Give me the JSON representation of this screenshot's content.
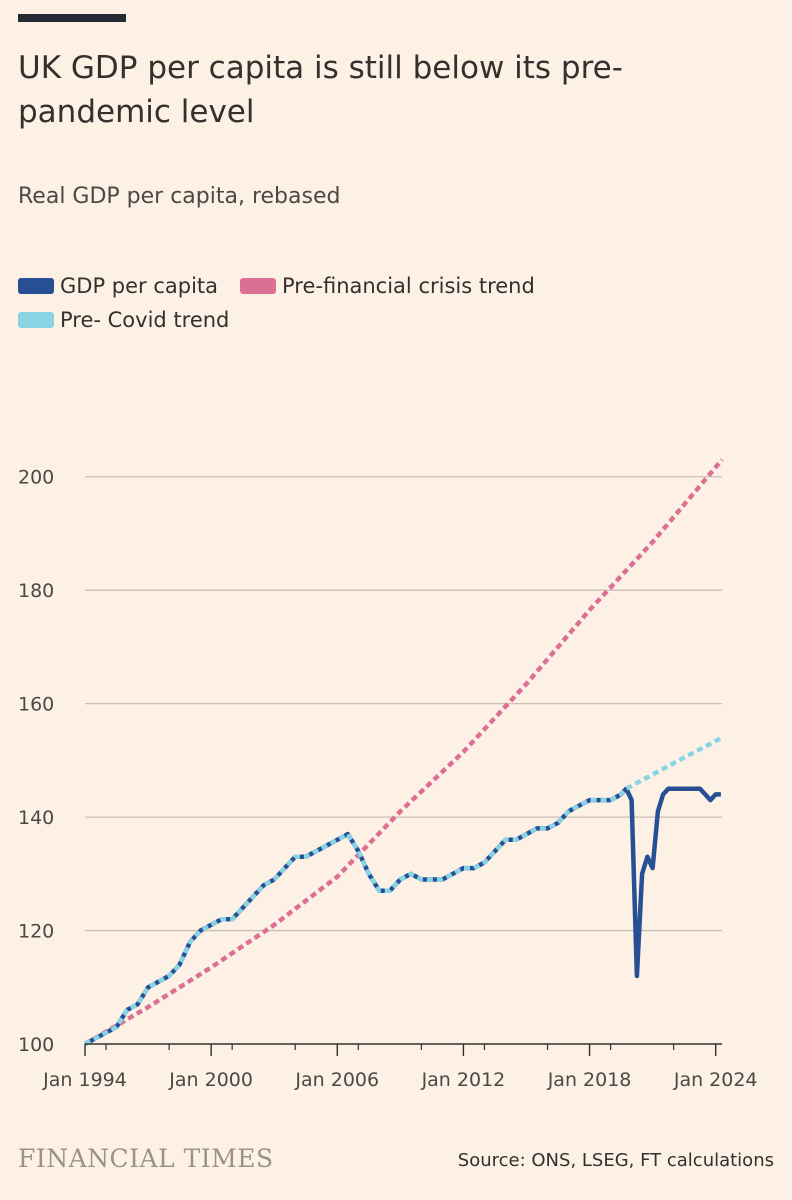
{
  "header": {
    "title": "UK GDP per capita is still below its pre-pandemic level",
    "subtitle": "Real GDP per capita, rebased"
  },
  "footer": {
    "brand": "FINANCIAL TIMES",
    "source": "Source: ONS, LSEG, FT calculations"
  },
  "colors": {
    "background": "#fdf1e6",
    "gdp": "#264f94",
    "pre_financial": "#dc7094",
    "pre_covid": "#89d4e4",
    "grid": "#c9c0b8"
  },
  "chart_data": {
    "type": "line",
    "title": "UK GDP per capita is still below its pre-pandemic level",
    "subtitle": "Real GDP per capita, rebased",
    "xlabel": "",
    "ylabel": "",
    "xlim": [
      1994,
      2024.3
    ],
    "ylim": [
      100,
      210
    ],
    "yticks": [
      100,
      120,
      140,
      160,
      180,
      200
    ],
    "xticks": [
      {
        "value": 1994,
        "label": "Jan 1994"
      },
      {
        "value": 2000,
        "label": "Jan 2000"
      },
      {
        "value": 2006,
        "label": "Jan 2006"
      },
      {
        "value": 2012,
        "label": "Jan 2012"
      },
      {
        "value": 2018,
        "label": "Jan 2018"
      },
      {
        "value": 2024,
        "label": "Jan 2024"
      }
    ],
    "grid": true,
    "legend_position": "top-left",
    "series": [
      {
        "name": "GDP per capita",
        "style": "solid",
        "x": [
          1994,
          1994.5,
          1995,
          1995.5,
          1996,
          1996.5,
          1997,
          1997.5,
          1998,
          1998.5,
          1999,
          1999.5,
          2000,
          2000.5,
          2001,
          2001.5,
          2002,
          2002.5,
          2003,
          2003.5,
          2004,
          2004.5,
          2005,
          2005.5,
          2006,
          2006.5,
          2007,
          2007.5,
          2008,
          2008.5,
          2009,
          2009.5,
          2010,
          2010.5,
          2011,
          2011.5,
          2012,
          2012.5,
          2013,
          2013.5,
          2014,
          2014.5,
          2015,
          2015.5,
          2016,
          2016.5,
          2017,
          2017.5,
          2018,
          2018.5,
          2019,
          2019.5,
          2019.75,
          2020,
          2020.25,
          2020.5,
          2020.75,
          2021,
          2021.25,
          2021.5,
          2021.75,
          2022,
          2022.5,
          2023,
          2023.25,
          2023.5,
          2023.75,
          2024,
          2024.25
        ],
        "values": [
          100,
          101,
          102,
          103,
          106,
          107,
          110,
          111,
          112,
          114,
          118,
          120,
          121,
          122,
          122,
          124,
          126,
          128,
          129,
          131,
          133,
          133,
          134,
          135,
          136,
          137,
          134,
          130,
          127,
          127,
          129,
          130,
          129,
          129,
          129,
          130,
          131,
          131,
          132,
          134,
          136,
          136,
          137,
          138,
          138,
          139,
          141,
          142,
          143,
          143,
          143,
          144,
          145,
          143,
          112,
          130,
          133,
          131,
          141,
          144,
          145,
          145,
          145,
          145,
          145,
          144,
          143,
          144,
          144
        ]
      },
      {
        "name": "Pre-financial crisis trend",
        "style": "dashed",
        "x": [
          1994,
          1997,
          2000,
          2003,
          2006,
          2009,
          2012,
          2015,
          2018,
          2021,
          2024.3
        ],
        "values": [
          100,
          106.5,
          113.5,
          121,
          129.5,
          141,
          151.5,
          163.5,
          176.5,
          188.5,
          203
        ]
      },
      {
        "name": "Pre- Covid trend",
        "style": "dashed",
        "x": [
          1994,
          1994.5,
          1995,
          1995.5,
          1996,
          1996.5,
          1997,
          1997.5,
          1998,
          1998.5,
          1999,
          1999.5,
          2000,
          2000.5,
          2001,
          2001.5,
          2002,
          2002.5,
          2003,
          2003.5,
          2004,
          2004.5,
          2005,
          2005.5,
          2006,
          2006.5,
          2007,
          2007.5,
          2008,
          2008.5,
          2009,
          2009.5,
          2010,
          2010.5,
          2011,
          2011.5,
          2012,
          2012.5,
          2013,
          2013.5,
          2014,
          2014.5,
          2015,
          2015.5,
          2016,
          2016.5,
          2017,
          2017.5,
          2018,
          2018.5,
          2019,
          2019.5,
          2019.75,
          2021,
          2022.5,
          2024.3
        ],
        "values": [
          100,
          101,
          102,
          103,
          106,
          107,
          110,
          111,
          112,
          114,
          118,
          120,
          121,
          122,
          122,
          124,
          126,
          128,
          129,
          131,
          133,
          133,
          134,
          135,
          136,
          137,
          134,
          130,
          127,
          127,
          129,
          130,
          129,
          129,
          129,
          130,
          131,
          131,
          132,
          134,
          136,
          136,
          137,
          138,
          138,
          139,
          141,
          142,
          143,
          143,
          143,
          144,
          145,
          147.5,
          150.5,
          154
        ]
      }
    ]
  }
}
